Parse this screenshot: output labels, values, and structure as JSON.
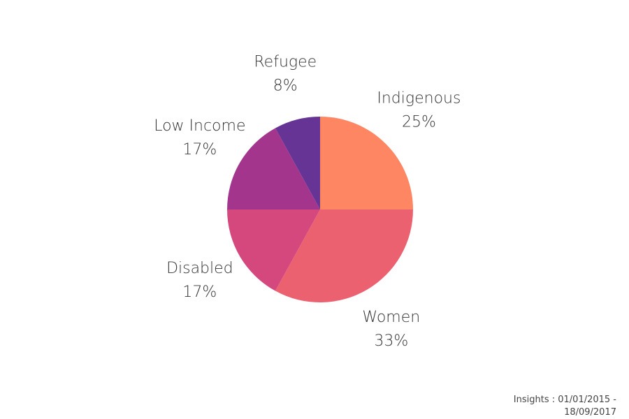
{
  "chart_data": {
    "type": "pie",
    "categories": [
      "Indigenous",
      "Women",
      "Disabled",
      "Low Income",
      "Refugee"
    ],
    "values": [
      25,
      33,
      17,
      17,
      8
    ],
    "value_labels": [
      "25%",
      "33%",
      "17%",
      "17%",
      "8%"
    ],
    "colors": [
      "#ff8663",
      "#ec6170",
      "#d4487e",
      "#a3368c",
      "#663494"
    ],
    "footer": "Insights : 01/01/2015 - 18/09/2017"
  }
}
